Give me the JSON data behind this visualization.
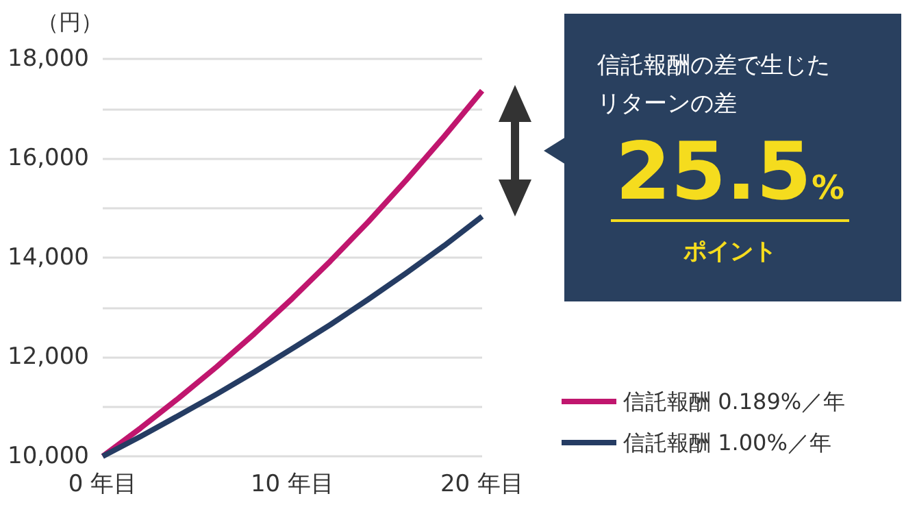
{
  "chart_data": {
    "type": "line",
    "ylabel": "（円）",
    "x": [
      0,
      2,
      4,
      6,
      8,
      10,
      12,
      14,
      16,
      18,
      20
    ],
    "series": [
      {
        "name": "信託報酬 0.189%／年",
        "color": "#c0166e",
        "values": [
          10000,
          10570,
          11170,
          11800,
          12470,
          13180,
          13930,
          14720,
          15560,
          16440,
          17360
        ]
      },
      {
        "name": "信託報酬 1.00%／年",
        "color": "#253c63",
        "values": [
          10000,
          10400,
          10820,
          11250,
          11700,
          12170,
          12650,
          13160,
          13690,
          14240,
          14830
        ]
      }
    ],
    "xlim": [
      0,
      20
    ],
    "xticks": [
      {
        "value": 0,
        "label": "0 年目"
      },
      {
        "value": 10,
        "label": "10 年目"
      },
      {
        "value": 20,
        "label": "20 年目"
      }
    ],
    "ylim": [
      10000,
      18000
    ],
    "yticks": [
      {
        "value": 10000,
        "label": "10,000"
      },
      {
        "value": 11000,
        "label": null
      },
      {
        "value": 12000,
        "label": "12,000"
      },
      {
        "value": 13000,
        "label": null
      },
      {
        "value": 14000,
        "label": "14,000"
      },
      {
        "value": 15000,
        "label": null
      },
      {
        "value": 16000,
        "label": "16,000"
      },
      {
        "value": 17000,
        "label": null
      },
      {
        "value": 18000,
        "label": "18,000"
      }
    ],
    "grid": "y",
    "legend": "bottom right",
    "line_style": "solid",
    "annotations": [
      "信託報酬の差で生じたリターンの差",
      "25.5",
      "%",
      "ポイント"
    ]
  }
}
